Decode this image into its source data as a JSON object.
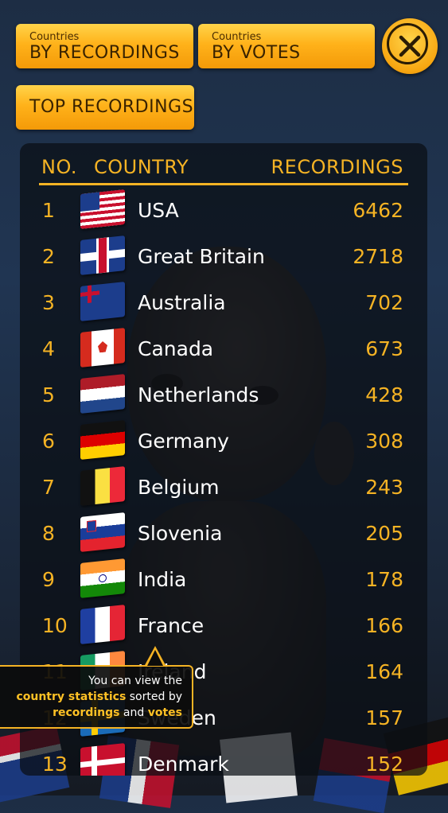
{
  "buttons": {
    "by_recordings": {
      "small": "Countries",
      "big": "BY RECORDINGS"
    },
    "by_votes": {
      "small": "Countries",
      "big": "BY VOTES"
    },
    "top_recordings": "TOP RECORDINGS"
  },
  "table": {
    "headers": {
      "no": "NO.",
      "country": "COUNTRY",
      "recordings": "RECORDINGS"
    },
    "rows": [
      {
        "no": "1",
        "country": "USA",
        "recordings": "6462",
        "flag": "flag-usa-icon"
      },
      {
        "no": "2",
        "country": "Great Britain",
        "recordings": "2718",
        "flag": "flag-gb-icon"
      },
      {
        "no": "3",
        "country": "Australia",
        "recordings": "702",
        "flag": "flag-au-icon"
      },
      {
        "no": "4",
        "country": "Canada",
        "recordings": "673",
        "flag": "flag-ca-icon"
      },
      {
        "no": "5",
        "country": "Netherlands",
        "recordings": "428",
        "flag": "flag-nl-icon"
      },
      {
        "no": "6",
        "country": "Germany",
        "recordings": "308",
        "flag": "flag-de-icon"
      },
      {
        "no": "7",
        "country": "Belgium",
        "recordings": "243",
        "flag": "flag-be-icon"
      },
      {
        "no": "8",
        "country": "Slovenia",
        "recordings": "205",
        "flag": "flag-si-icon"
      },
      {
        "no": "9",
        "country": "India",
        "recordings": "178",
        "flag": "flag-in-icon"
      },
      {
        "no": "10",
        "country": "France",
        "recordings": "166",
        "flag": "flag-fr-icon"
      },
      {
        "no": "11",
        "country": "Ireland",
        "recordings": "164",
        "flag": "flag-ie-icon"
      },
      {
        "no": "12",
        "country": "Sweden",
        "recordings": "157",
        "flag": "flag-se-icon"
      },
      {
        "no": "13",
        "country": "Denmark",
        "recordings": "152",
        "flag": "flag-dk-icon"
      }
    ]
  },
  "tooltip": {
    "line1": "You can view the",
    "line2_bold": "country statistics",
    "line2_rest": " sorted by",
    "line3_bold1": "recordings",
    "line3_mid": " and ",
    "line3_bold2": "votes"
  },
  "colors": {
    "accent": "#f5b324",
    "button": "#ffb21a",
    "text": "#ffffff"
  }
}
